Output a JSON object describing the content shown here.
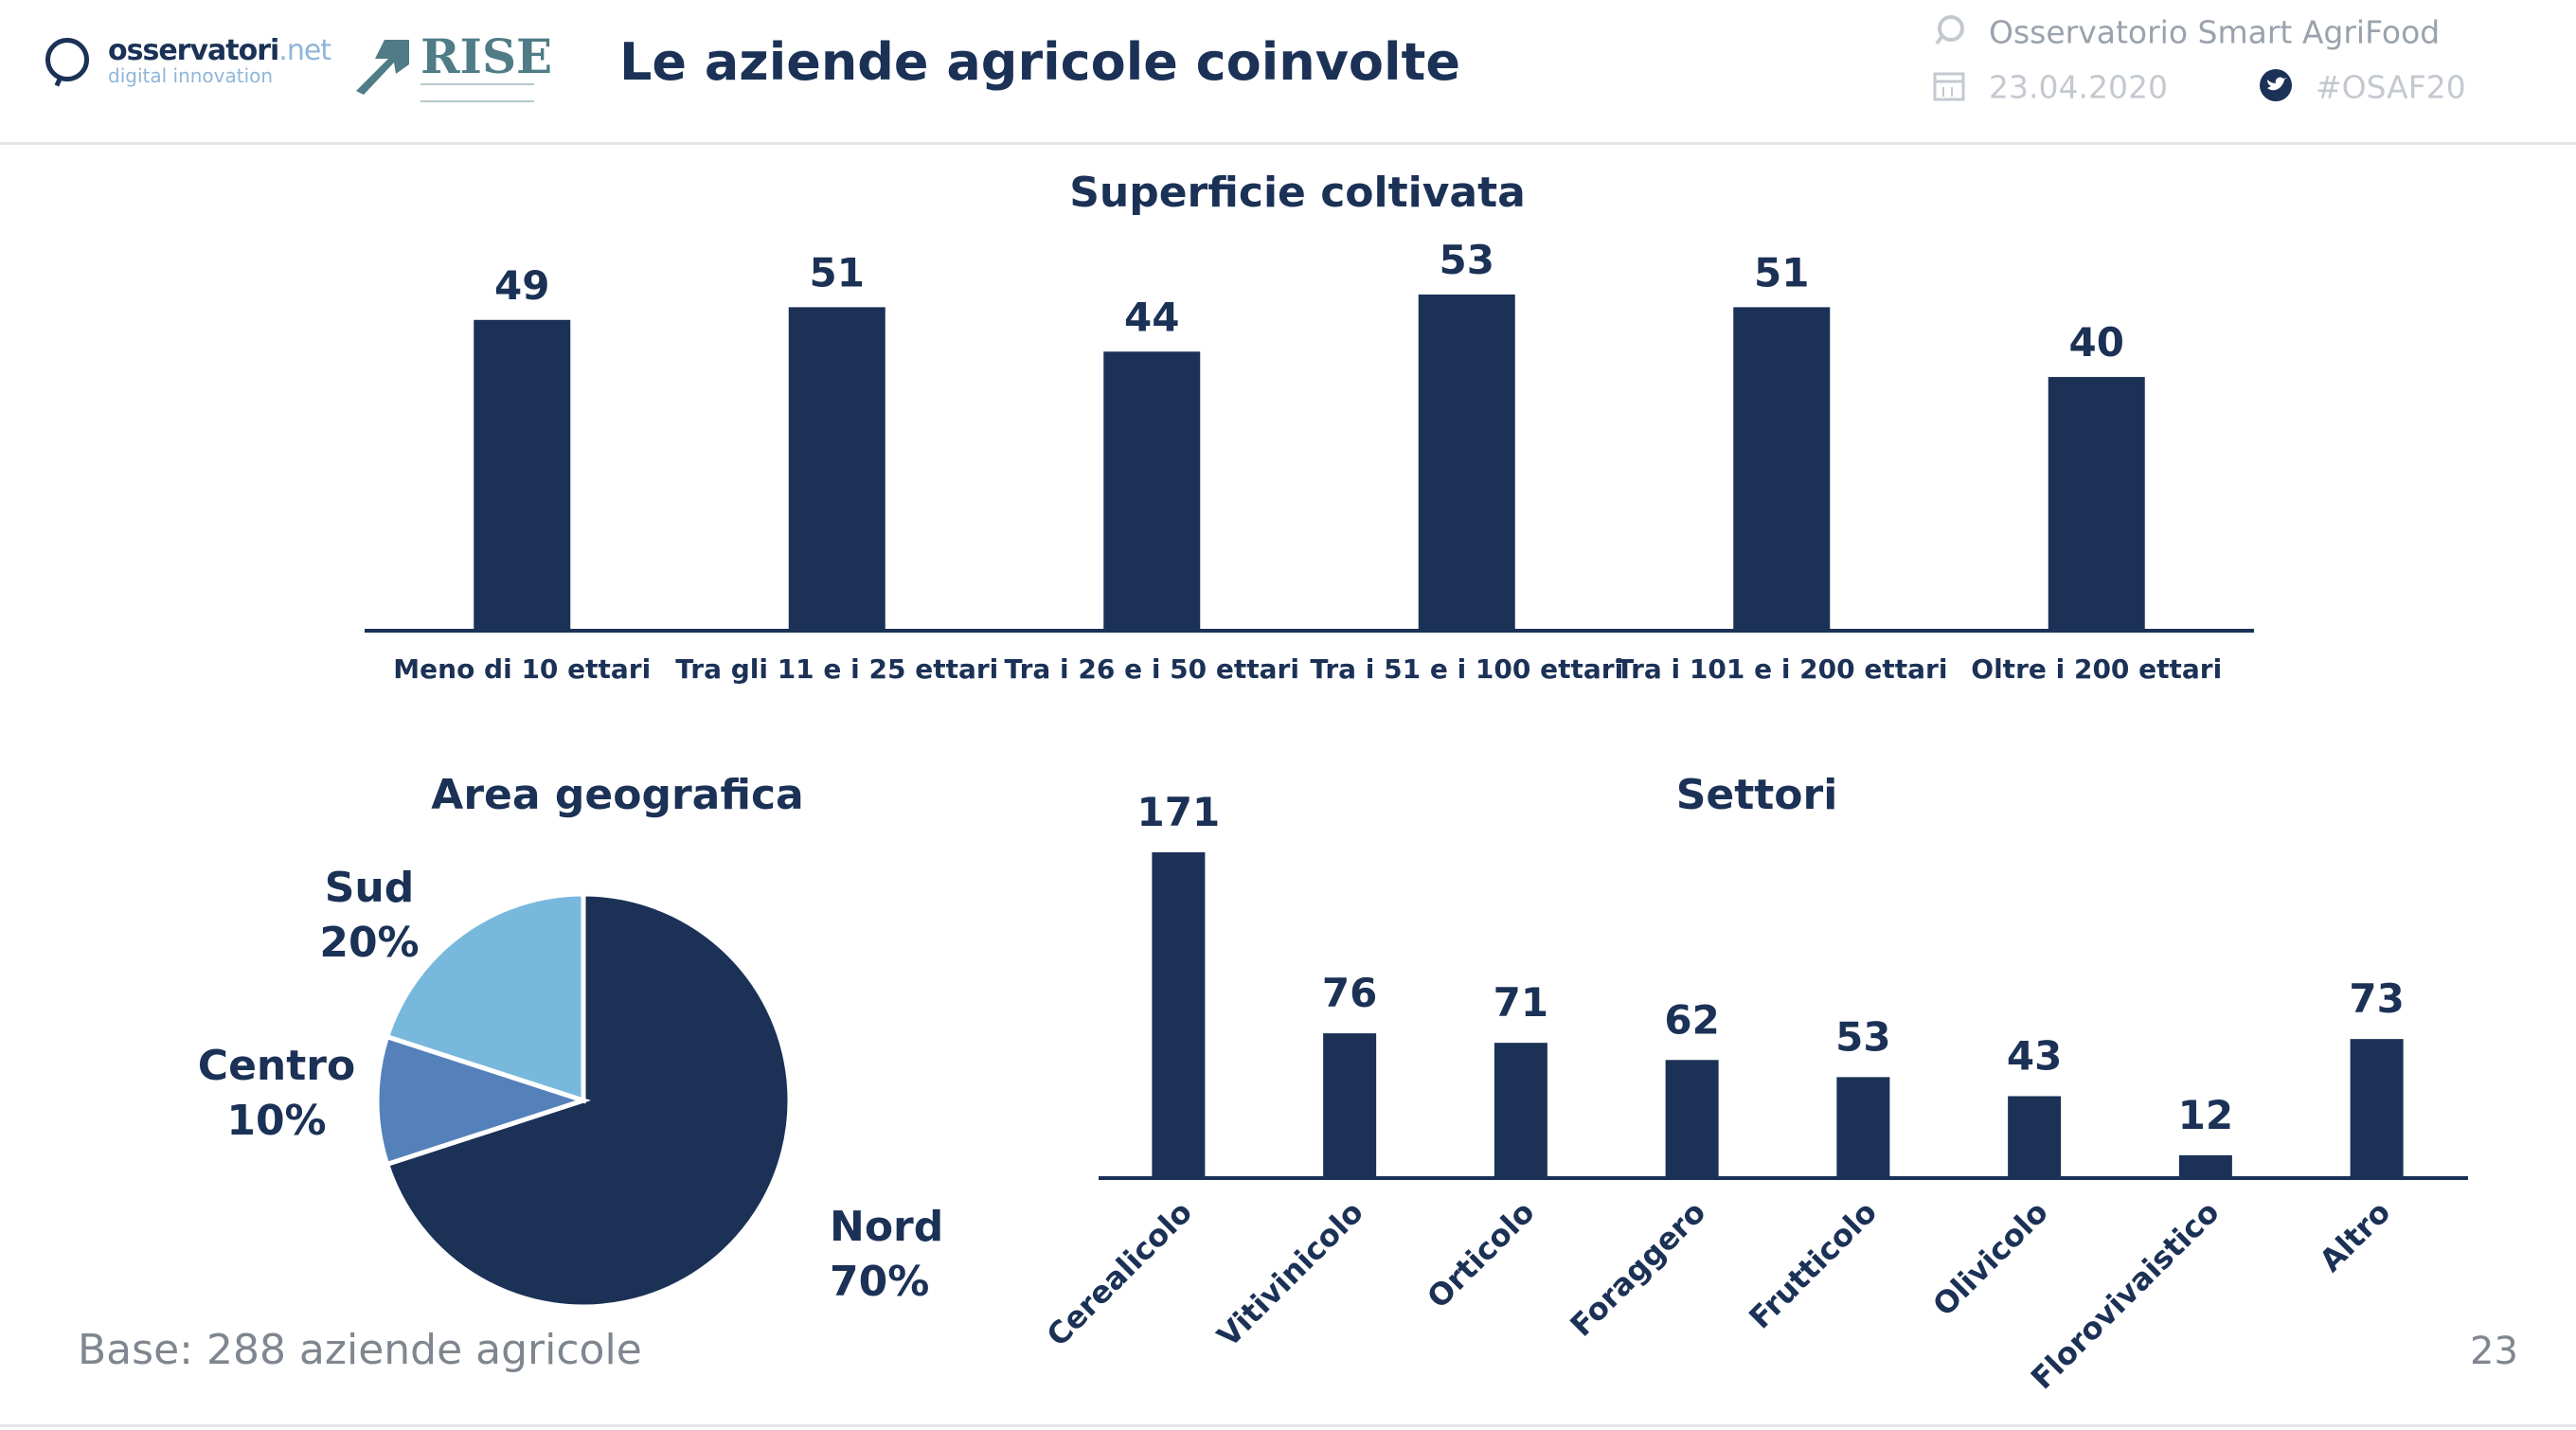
{
  "header": {
    "logo1": {
      "name": "osservatori",
      "suffix": ".net",
      "tagline": "digital innovation"
    },
    "logo2": {
      "name": "RISE"
    },
    "title": "Le aziende agricole coinvolte",
    "event": "Osservatorio Smart AgriFood",
    "date": "23.04.2020",
    "hashtag": "#OSAF20"
  },
  "colors": {
    "dark_blue": "#1b3156",
    "mid_blue": "#5581bb",
    "light_blue": "#79b8dd",
    "axis": "#1b3156"
  },
  "chart_data": [
    {
      "type": "bar",
      "title": "Superficie coltivata",
      "categories": [
        "Meno di 10 ettari",
        "Tra gli 11 e i 25 ettari",
        "Tra i 26 e i 50 ettari",
        "Tra i 51 e i 100 ettari",
        "Tra i 101 e i 200 ettari",
        "Oltre i 200 ettari"
      ],
      "values": [
        49,
        51,
        44,
        53,
        51,
        40
      ],
      "xlabel": "",
      "ylabel": "",
      "ylim": [
        0,
        53
      ]
    },
    {
      "type": "pie",
      "title": "Area geografica",
      "labels": [
        "Nord",
        "Centro",
        "Sud"
      ],
      "values": [
        70,
        10,
        20
      ],
      "value_labels": [
        "70%",
        "10%",
        "20%"
      ],
      "colors": [
        "#1b3156",
        "#5581bb",
        "#79b8dd"
      ]
    },
    {
      "type": "bar",
      "title": "Settori",
      "categories": [
        "Cerealicolo",
        "Vitivinicolo",
        "Orticolo",
        "Foraggero",
        "Frutticolo",
        "Olivicolo",
        "Florovivaistico",
        "Altro"
      ],
      "values": [
        171,
        76,
        71,
        62,
        53,
        43,
        12,
        73
      ],
      "xlabel": "",
      "ylabel": "",
      "ylim": [
        0,
        171
      ]
    }
  ],
  "footer": {
    "base": "Base: 288 aziende agricole",
    "page": "23"
  }
}
